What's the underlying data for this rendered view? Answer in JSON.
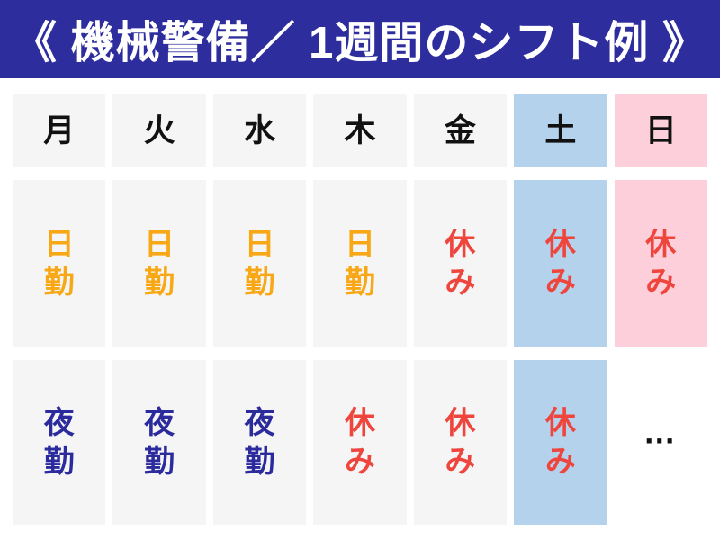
{
  "title": "《 機械警備／ 1週間のシフト例 》",
  "colors": {
    "page_bg": "#ffffff",
    "header_bg": "#2d2d9e",
    "title_text": "#ffffff",
    "cell_bg": "#f5f5f6",
    "saturday_bg": "#b4d2ec",
    "sunday_bg": "#fccfda",
    "weekday_text": "#111111",
    "day_shift_text": "#f8a715",
    "night_shift_text": "#2b2b9e",
    "rest_text": "#ee453d",
    "ellipsis_text": "#111111"
  },
  "chart_data": {
    "type": "table",
    "title": "《 機械警備／ 1週間のシフト例 》",
    "columns": [
      "月",
      "火",
      "水",
      "木",
      "金",
      "土",
      "日"
    ],
    "rows": [
      [
        "日勤",
        "日勤",
        "日勤",
        "日勤",
        "休み",
        "休み",
        "休み"
      ],
      [
        "夜勤",
        "夜勤",
        "夜勤",
        "休み",
        "休み",
        "休み",
        "…"
      ]
    ],
    "column_highlights": {
      "土": "light-blue",
      "日": "pink"
    },
    "value_colors": {
      "日勤": "orange",
      "夜勤": "navy",
      "休み": "red"
    },
    "grid": false,
    "legend": "none"
  },
  "table": {
    "columns": [
      {
        "key": "mon",
        "label": "月"
      },
      {
        "key": "tue",
        "label": "火"
      },
      {
        "key": "wed",
        "label": "水"
      },
      {
        "key": "thu",
        "label": "木"
      },
      {
        "key": "fri",
        "label": "金"
      },
      {
        "key": "sat",
        "label": "土"
      },
      {
        "key": "sun",
        "label": "日"
      }
    ],
    "rows": [
      {
        "name": "week-row-1",
        "cells": [
          {
            "text": "日勤",
            "kind": "day"
          },
          {
            "text": "日勤",
            "kind": "day"
          },
          {
            "text": "日勤",
            "kind": "day"
          },
          {
            "text": "日勤",
            "kind": "day"
          },
          {
            "text": "休み",
            "kind": "rest"
          },
          {
            "text": "休み",
            "kind": "rest"
          },
          {
            "text": "休み",
            "kind": "rest"
          }
        ]
      },
      {
        "name": "week-row-2",
        "cells": [
          {
            "text": "夜勤",
            "kind": "night"
          },
          {
            "text": "夜勤",
            "kind": "night"
          },
          {
            "text": "夜勤",
            "kind": "night"
          },
          {
            "text": "休み",
            "kind": "rest"
          },
          {
            "text": "休み",
            "kind": "rest"
          },
          {
            "text": "休み",
            "kind": "rest"
          },
          {
            "text": "…",
            "kind": "ellipsis"
          }
        ]
      }
    ]
  }
}
